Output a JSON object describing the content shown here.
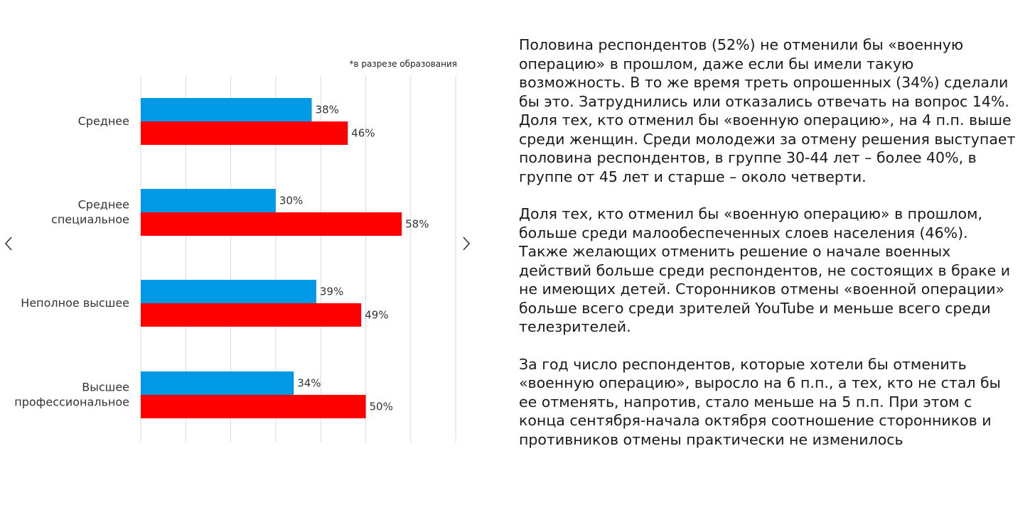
{
  "chart_data": {
    "type": "bar",
    "orientation": "horizontal",
    "note": "*в разрезе образования",
    "categories": [
      "Среднее",
      "Среднее специальное",
      "Неполное высшее",
      "Высшее профессиональное"
    ],
    "category_lines": [
      [
        "Среднее"
      ],
      [
        "Среднее",
        "специальное"
      ],
      [
        "Неполное высшее"
      ],
      [
        "Высшее",
        "профессиональное"
      ]
    ],
    "series": [
      {
        "color": "#0099e6",
        "values": [
          38,
          30,
          39,
          34
        ],
        "labels": [
          "38%",
          "30%",
          "39%",
          "34%"
        ]
      },
      {
        "color": "#ff0000",
        "values": [
          46,
          58,
          49,
          50
        ],
        "labels": [
          "46%",
          "58%",
          "49%",
          "50%"
        ]
      }
    ],
    "xlim": [
      0,
      70
    ],
    "grid": true,
    "legend": "none"
  },
  "nav": {
    "prev_icon": "chevron-left-icon",
    "next_icon": "chevron-right-icon"
  },
  "text": {
    "paragraphs": [
      "Половина респондентов (52%) не отменили бы «военную операцию» в прошлом, даже если бы имели такую возможность. В то же время треть опрошенных (34%) сделали бы это. Затруднились или отказались отвечать на вопрос 14%. Доля тех, кто отменил бы «военную операцию», на 4 п.п. выше среди женщин. Среди молодежи за отмену решения выступает половина респондентов, в группе 30-44 лет – более 40%, в группе от 45 лет и старше – около четверти.",
      "Доля тех, кто отменил бы «военную операцию» в прошлом, больше среди малообеспеченных слоев населения (46%). Также желающих отменить решение о начале военных действий больше среди респондентов, не состоящих в браке и не имеющих детей. Сторонников отмены «военной операции» больше всего среди зрителей YouTube и меньше всего среди телезрителей.",
      "За год число респондентов, которые хотели бы отменить «военную операцию», выросло на 6 п.п., а тех, кто не стал бы ее отменять, напротив, стало меньше на 5 п.п. При этом с конца сентября-начала октября соотношение сторонников и противников отмены практически не изменилось"
    ]
  }
}
